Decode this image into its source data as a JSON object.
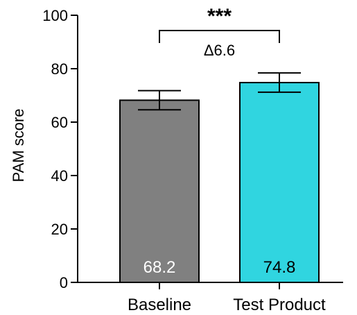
{
  "chart_data": {
    "type": "bar",
    "categories": [
      "Baseline",
      "Test Product"
    ],
    "values": [
      68.2,
      74.8
    ],
    "value_labels": [
      "68.2",
      "74.8"
    ],
    "error_bars": [
      {
        "low": 64.6,
        "high": 71.8
      },
      {
        "low": 71.2,
        "high": 78.4
      }
    ],
    "colors": [
      "#808080",
      "#30D5E0"
    ],
    "value_label_colors": [
      "#ffffff",
      "#000000"
    ],
    "ylabel": "PAM score",
    "ylim": [
      0,
      100
    ],
    "yticks": [
      0,
      20,
      40,
      60,
      80,
      100
    ],
    "ytick_labels": [
      "0",
      "20",
      "40",
      "60",
      "80",
      "100"
    ],
    "annotation": {
      "significance": "***",
      "delta": "Δ6.6"
    },
    "grid": false,
    "legend": "none"
  }
}
